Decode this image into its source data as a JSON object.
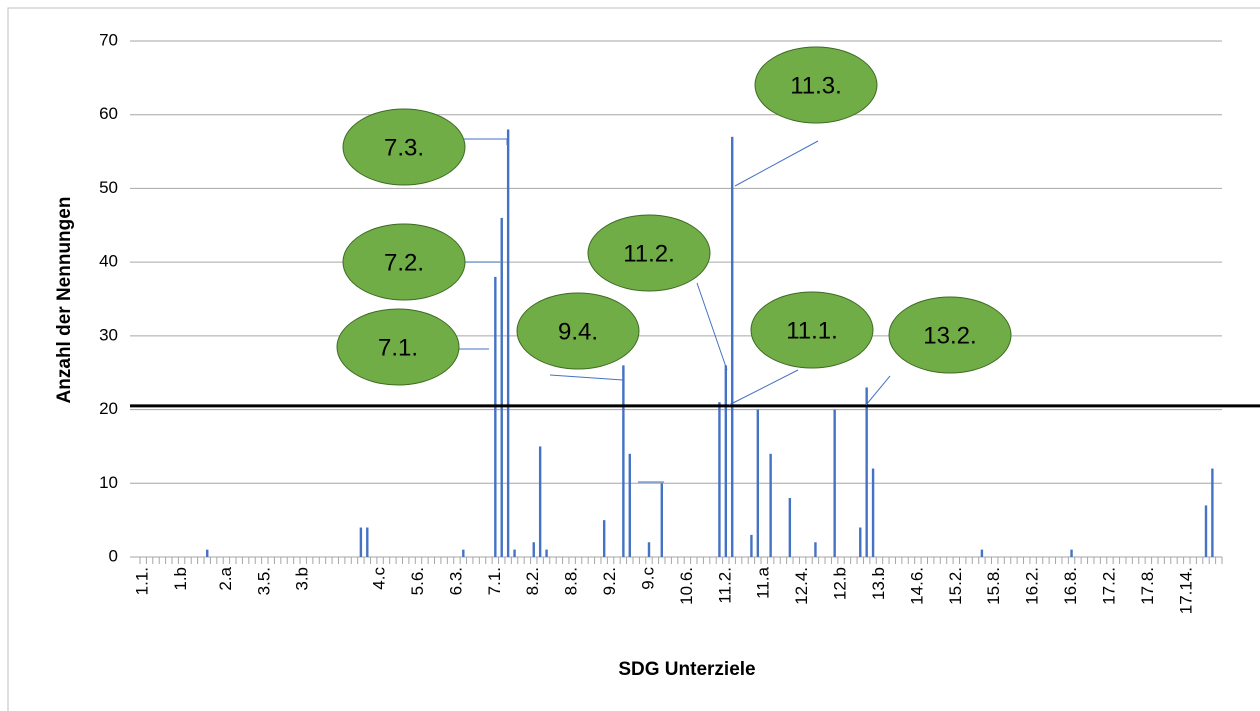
{
  "chart_data": {
    "type": "bar",
    "xlabel": "SDG Unterziele",
    "ylabel": "Anzahl der Nennungen",
    "color": "#4472c4",
    "ylim": [
      0,
      70
    ],
    "yticks": [
      0,
      10,
      20,
      30,
      40,
      50,
      60,
      70
    ],
    "grid": true,
    "threshold": 20.5,
    "annotations": [
      "7.3.",
      "7.2.",
      "7.1.",
      "9.4.",
      "11.2.",
      "11.1.",
      "11.3.",
      "13.2."
    ],
    "categories": [
      "1.1.",
      null,
      null,
      null,
      null,
      null,
      "1.b",
      null,
      null,
      null,
      null,
      null,
      null,
      "2.a",
      null,
      null,
      null,
      null,
      null,
      "3.5.",
      null,
      null,
      null,
      null,
      null,
      "3.b",
      null,
      null,
      null,
      null,
      null,
      null,
      null,
      null,
      null,
      null,
      null,
      "4.c",
      null,
      null,
      null,
      null,
      null,
      "5.6.",
      null,
      null,
      null,
      null,
      null,
      "6.3.",
      null,
      null,
      null,
      null,
      null,
      "7.1.",
      null,
      null,
      null,
      null,
      null,
      "8.2.",
      null,
      null,
      null,
      null,
      null,
      "8.8.",
      null,
      null,
      null,
      null,
      null,
      "9.2.",
      null,
      null,
      null,
      null,
      null,
      "9.c",
      null,
      null,
      null,
      null,
      null,
      "10.6.",
      null,
      null,
      null,
      null,
      null,
      "11.2.",
      null,
      null,
      null,
      null,
      null,
      "11.a",
      null,
      null,
      null,
      null,
      null,
      "12.4.",
      null,
      null,
      null,
      null,
      null,
      "12.b",
      null,
      null,
      null,
      null,
      null,
      "13.b",
      null,
      null,
      null,
      null,
      null,
      "14.6.",
      null,
      null,
      null,
      null,
      null,
      "15.2.",
      null,
      null,
      null,
      null,
      null,
      "15.8.",
      null,
      null,
      null,
      null,
      null,
      "16.2.",
      null,
      null,
      null,
      null,
      null,
      "16.8.",
      null,
      null,
      null,
      null,
      null,
      "17.2.",
      null,
      null,
      null,
      null,
      null,
      "17.8.",
      null,
      null,
      null,
      null,
      null,
      "17.14.",
      null,
      null,
      null,
      null,
      null
    ],
    "values": [
      0,
      0,
      0,
      0,
      0,
      0,
      0,
      0,
      0,
      0,
      1,
      0,
      0,
      0,
      0,
      0,
      0,
      0,
      0,
      0,
      0,
      0,
      0,
      0,
      0,
      0,
      0,
      0,
      0,
      0,
      0,
      0,
      0,
      0,
      4,
      4,
      0,
      0,
      0,
      0,
      0,
      0,
      0,
      0,
      0,
      0,
      0,
      0,
      0,
      0,
      1,
      0,
      0,
      0,
      0,
      38,
      46,
      58,
      1,
      0,
      0,
      2,
      15,
      1,
      0,
      0,
      0,
      0,
      0,
      0,
      0,
      0,
      5,
      0,
      0,
      26,
      14,
      0,
      0,
      2,
      0,
      10,
      0,
      0,
      0,
      0,
      0,
      0,
      0,
      0,
      21,
      26,
      57,
      0,
      0,
      3,
      20,
      0,
      14,
      0,
      0,
      8,
      0,
      0,
      0,
      2,
      0,
      0,
      20,
      0,
      0,
      0,
      4,
      23,
      12,
      0,
      0,
      0,
      0,
      0,
      0,
      0,
      0,
      0,
      0,
      0,
      0,
      0,
      0,
      0,
      0,
      1,
      0,
      0,
      0,
      0,
      0,
      0,
      0,
      0,
      0,
      0,
      0,
      0,
      0,
      1,
      0,
      0,
      0,
      0,
      0,
      0,
      0,
      0,
      0,
      0,
      0,
      0,
      0,
      0,
      0,
      0,
      0,
      0,
      0,
      0,
      7,
      12,
      0
    ]
  }
}
